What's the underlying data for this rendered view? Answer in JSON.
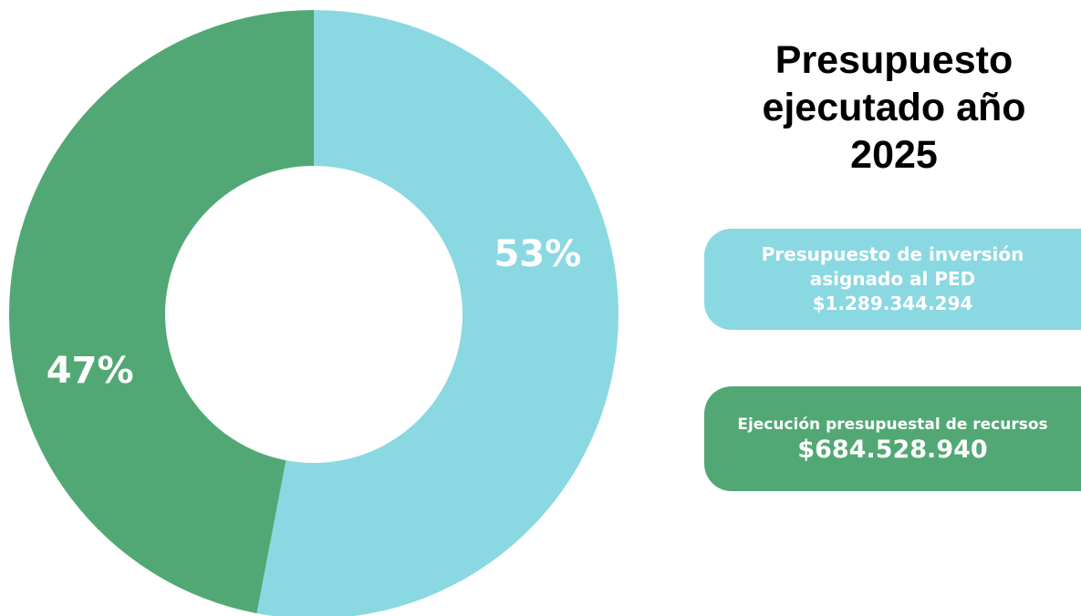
{
  "title_lines": [
    "Presupuesto",
    "ejecutado año",
    "2025"
  ],
  "cards": {
    "asignado": {
      "label_lines": [
        "Presupuesto de inversión",
        "asignado al PED"
      ],
      "value": "$1.289.344.294"
    },
    "ejecutado": {
      "label": "Ejecución presupuestal de recursos",
      "value": "$684.528.940"
    }
  },
  "colors": {
    "light_blue": "#8AD8E2",
    "green": "#52A874",
    "white": "#FFFFFF"
  },
  "chart_data": {
    "type": "pie",
    "style": "donut",
    "slices": [
      {
        "label": "53%",
        "value": 53,
        "color": "#8AD8E2"
      },
      {
        "label": "47%",
        "value": 47,
        "color": "#52A874"
      }
    ]
  }
}
